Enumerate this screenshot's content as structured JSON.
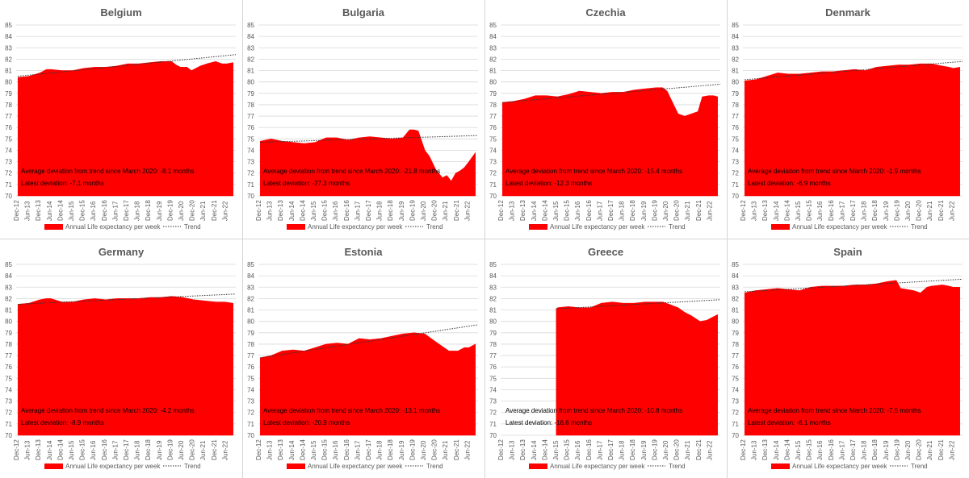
{
  "common": {
    "x_ticks": [
      "Dec-12",
      "Jun-13",
      "Dec-13",
      "Jun-14",
      "Dec-14",
      "Jun-15",
      "Dec-15",
      "Jun-16",
      "Dec-16",
      "Jun-17",
      "Dec-17",
      "Jun-18",
      "Dec-18",
      "Jun-19",
      "Dec-19",
      "Jun-20",
      "Dec-20",
      "Jun-21",
      "Dec-21",
      "Jun-22"
    ],
    "y_ticks": [
      "70",
      "71",
      "72",
      "73",
      "74",
      "75",
      "76",
      "77",
      "78",
      "79",
      "80",
      "81",
      "82",
      "83",
      "84",
      "85"
    ],
    "legend_area": "Annual Life expectancy per week",
    "legend_trend": "Trend",
    "colors": {
      "area": "#ff0000",
      "trend": "#333333",
      "grid": "#d9d9d9",
      "text": "#595959"
    }
  },
  "chart_data": [
    {
      "type": "area",
      "title": "Belgium",
      "ylim": [
        70,
        85
      ],
      "x": [
        2013.0,
        2013.5,
        2014.0,
        2014.3,
        2014.5,
        2015.0,
        2015.5,
        2016.0,
        2016.5,
        2017.0,
        2017.5,
        2018.0,
        2018.5,
        2019.0,
        2019.5,
        2020.0,
        2020.2,
        2020.4,
        2020.7,
        2020.9,
        2021.3,
        2021.6,
        2022.0,
        2022.3,
        2022.5,
        2022.8
      ],
      "values": [
        80.4,
        80.5,
        80.8,
        81.1,
        81.1,
        81.0,
        81.0,
        81.2,
        81.3,
        81.3,
        81.4,
        81.6,
        81.6,
        81.7,
        81.8,
        81.8,
        81.5,
        81.3,
        81.3,
        81.0,
        81.4,
        81.6,
        81.8,
        81.6,
        81.6,
        81.7
      ],
      "trend": [
        80.5,
        82.4
      ],
      "annotation_avg": "Average deviation from trend since March 2020: -8.1 months",
      "annotation_latest": "Latest deviation: -7.1 months"
    },
    {
      "type": "area",
      "title": "Bulgaria",
      "ylim": [
        70,
        85
      ],
      "x": [
        2013.0,
        2013.5,
        2014.0,
        2014.5,
        2015.0,
        2015.5,
        2016.0,
        2016.5,
        2017.0,
        2017.5,
        2018.0,
        2018.5,
        2019.0,
        2019.5,
        2019.8,
        2020.0,
        2020.2,
        2020.5,
        2020.7,
        2021.0,
        2021.3,
        2021.5,
        2021.7,
        2021.9,
        2022.1,
        2022.3,
        2022.5,
        2022.8
      ],
      "values": [
        74.8,
        75.0,
        74.8,
        74.7,
        74.6,
        74.7,
        75.1,
        75.1,
        74.9,
        75.1,
        75.2,
        75.1,
        75.0,
        75.1,
        75.8,
        75.8,
        75.7,
        74.0,
        73.5,
        72.3,
        71.6,
        71.8,
        71.3,
        72.0,
        72.2,
        72.5,
        73.0,
        73.8
      ],
      "trend": [
        74.7,
        75.3
      ],
      "annotation_avg": "Average deviation from trend since March 2020: -21.8 months",
      "annotation_latest": "Latest deviation: -27.3 months"
    },
    {
      "type": "area",
      "title": "Czechia",
      "ylim": [
        70,
        85
      ],
      "x": [
        2013.0,
        2013.5,
        2014.0,
        2014.5,
        2015.0,
        2015.5,
        2016.0,
        2016.5,
        2017.0,
        2017.5,
        2018.0,
        2018.5,
        2019.0,
        2019.5,
        2020.0,
        2020.3,
        2020.5,
        2020.8,
        2021.0,
        2021.3,
        2021.6,
        2021.9,
        2022.1,
        2022.4,
        2022.6,
        2022.8
      ],
      "values": [
        78.2,
        78.3,
        78.5,
        78.8,
        78.8,
        78.7,
        78.9,
        79.2,
        79.1,
        79.0,
        79.1,
        79.1,
        79.3,
        79.4,
        79.5,
        79.5,
        79.2,
        78.0,
        77.2,
        77.0,
        77.2,
        77.4,
        78.7,
        78.8,
        78.8,
        78.7
      ],
      "trend": [
        78.2,
        79.8
      ],
      "annotation_avg": "Average deviation from trend since March 2020: -15.4 months",
      "annotation_latest": "Latest deviation: -12.3 months"
    },
    {
      "type": "area",
      "title": "Denmark",
      "ylim": [
        70,
        85
      ],
      "x": [
        2013.0,
        2013.5,
        2014.0,
        2014.5,
        2015.0,
        2015.5,
        2016.0,
        2016.5,
        2017.0,
        2017.5,
        2018.0,
        2018.5,
        2019.0,
        2019.5,
        2020.0,
        2020.5,
        2021.0,
        2021.5,
        2022.0,
        2022.3,
        2022.5,
        2022.8
      ],
      "values": [
        80.1,
        80.2,
        80.5,
        80.8,
        80.7,
        80.7,
        80.8,
        80.9,
        80.9,
        81.0,
        81.1,
        81.0,
        81.3,
        81.4,
        81.5,
        81.5,
        81.6,
        81.6,
        81.4,
        81.3,
        81.2,
        81.3
      ],
      "trend": [
        80.2,
        81.8
      ],
      "annotation_avg": "Average deviation from trend since March 2020: -1.9 months",
      "annotation_latest": "Latest deviation: -6.9 months"
    },
    {
      "type": "area",
      "title": "Germany",
      "ylim": [
        70,
        85
      ],
      "x": [
        2013.0,
        2013.5,
        2014.0,
        2014.3,
        2014.5,
        2015.0,
        2015.5,
        2016.0,
        2016.5,
        2017.0,
        2017.5,
        2018.0,
        2018.5,
        2019.0,
        2019.5,
        2020.0,
        2020.5,
        2021.0,
        2021.5,
        2022.0,
        2022.4,
        2022.8
      ],
      "values": [
        81.5,
        81.6,
        81.9,
        82.0,
        82.0,
        81.7,
        81.7,
        81.9,
        82.0,
        81.9,
        82.0,
        82.0,
        82.0,
        82.1,
        82.1,
        82.2,
        82.1,
        81.9,
        81.8,
        81.7,
        81.7,
        81.6
      ],
      "trend": [
        81.5,
        82.4
      ],
      "annotation_avg": "Average deviation from trend since March 2020: -4.2 months",
      "annotation_latest": "Latest deviation: -8.9 months"
    },
    {
      "type": "area",
      "title": "Estonia",
      "ylim": [
        70,
        85
      ],
      "x": [
        2013.0,
        2013.5,
        2014.0,
        2014.5,
        2015.0,
        2015.5,
        2016.0,
        2016.5,
        2017.0,
        2017.5,
        2018.0,
        2018.5,
        2019.0,
        2019.5,
        2020.0,
        2020.5,
        2021.0,
        2021.3,
        2021.6,
        2022.0,
        2022.3,
        2022.5,
        2022.8
      ],
      "values": [
        76.8,
        77.0,
        77.4,
        77.5,
        77.4,
        77.7,
        78.0,
        78.1,
        78.0,
        78.5,
        78.4,
        78.5,
        78.7,
        78.9,
        79.0,
        78.9,
        78.2,
        77.8,
        77.4,
        77.4,
        77.7,
        77.7,
        78.0
      ],
      "trend": [
        76.8,
        79.7
      ],
      "annotation_avg": "Average deviation from trend since March 2020: -13.1 months",
      "annotation_latest": "Latest deviation: -20.9 months"
    },
    {
      "type": "area",
      "title": "Greece",
      "ylim": [
        70,
        85
      ],
      "x": [
        2015.45,
        2015.5,
        2016.0,
        2016.5,
        2017.0,
        2017.5,
        2018.0,
        2018.5,
        2019.0,
        2019.5,
        2020.0,
        2020.3,
        2020.6,
        2021.0,
        2021.3,
        2021.6,
        2022.0,
        2022.3,
        2022.5,
        2022.8
      ],
      "values": [
        81.1,
        81.2,
        81.3,
        81.2,
        81.2,
        81.6,
        81.7,
        81.6,
        81.6,
        81.7,
        81.7,
        81.7,
        81.5,
        81.2,
        80.8,
        80.5,
        80.0,
        80.1,
        80.3,
        80.6
      ],
      "trend": [
        81.1,
        81.9
      ],
      "annotation_avg": "Average deviation from trend since March 2020: -10.8 months",
      "annotation_latest": "Latest deviation: -16.6 months"
    },
    {
      "type": "area",
      "title": "Spain",
      "ylim": [
        70,
        85
      ],
      "x": [
        2013.0,
        2013.5,
        2014.0,
        2014.5,
        2015.0,
        2015.5,
        2016.0,
        2016.5,
        2017.0,
        2017.5,
        2018.0,
        2018.5,
        2019.0,
        2019.5,
        2019.9,
        2020.1,
        2020.4,
        2020.7,
        2021.0,
        2021.3,
        2021.5,
        2022.0,
        2022.3,
        2022.5,
        2022.8
      ],
      "values": [
        82.5,
        82.7,
        82.8,
        82.9,
        82.8,
        82.7,
        83.0,
        83.1,
        83.1,
        83.1,
        83.2,
        83.2,
        83.3,
        83.5,
        83.6,
        82.9,
        82.8,
        82.7,
        82.5,
        83.0,
        83.1,
        83.2,
        83.1,
        83.0,
        83.0
      ],
      "trend": [
        82.6,
        83.7
      ],
      "annotation_avg": "Average deviation from trend since March 2020: -7.5 months",
      "annotation_latest": "Latest deviation: -8.1 months"
    }
  ]
}
